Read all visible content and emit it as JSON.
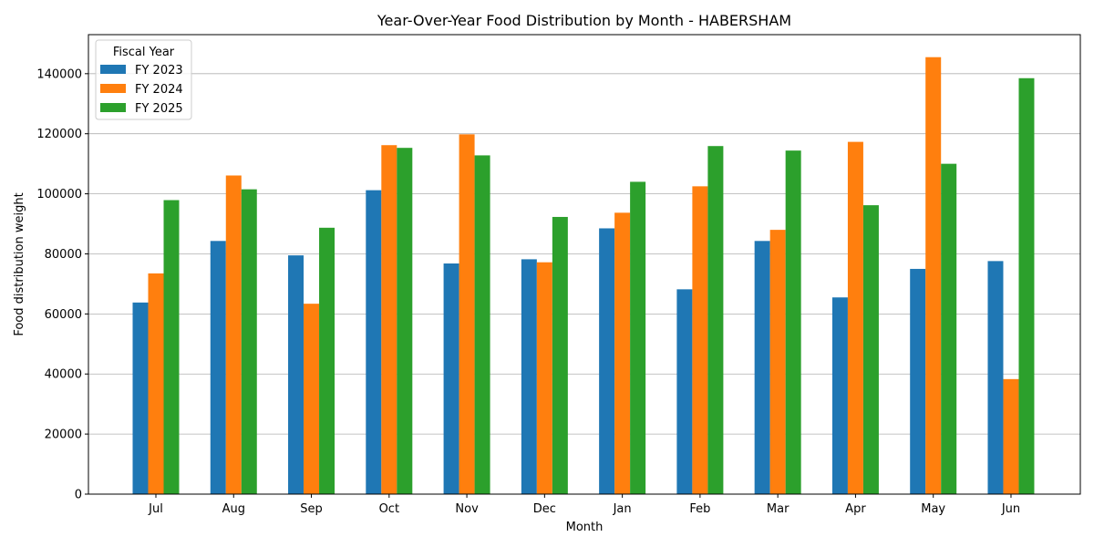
{
  "chart_data": {
    "type": "bar",
    "title": "Year-Over-Year Food Distribution by Month - HABERSHAM",
    "xlabel": "Month",
    "ylabel": "Food distribution weight",
    "categories": [
      "Jul",
      "Aug",
      "Sep",
      "Oct",
      "Nov",
      "Dec",
      "Jan",
      "Feb",
      "Mar",
      "Apr",
      "May",
      "Jun"
    ],
    "ylim": [
      0,
      153000
    ],
    "yticks": [
      0,
      20000,
      40000,
      60000,
      80000,
      100000,
      120000,
      140000
    ],
    "ytick_labels": [
      "0",
      "20000",
      "40000",
      "60000",
      "80000",
      "100000",
      "120000",
      "140000"
    ],
    "grid": "y-major",
    "legend": {
      "title": "Fiscal Year",
      "placement": "top-left"
    },
    "series": [
      {
        "name": "FY 2023",
        "color": "#1f77b4",
        "values": [
          63800,
          84300,
          79500,
          101200,
          76800,
          78200,
          88500,
          68200,
          84300,
          65500,
          75000,
          77600
        ]
      },
      {
        "name": "FY 2024",
        "color": "#ff7f0e",
        "values": [
          73500,
          106100,
          63400,
          116200,
          119800,
          77200,
          93700,
          102500,
          88000,
          117300,
          145500,
          38300
        ]
      },
      {
        "name": "FY 2025",
        "color": "#2ca02c",
        "values": [
          97900,
          101500,
          88700,
          115300,
          112800,
          92300,
          104000,
          115900,
          114400,
          96200,
          110000,
          138500
        ]
      }
    ]
  }
}
